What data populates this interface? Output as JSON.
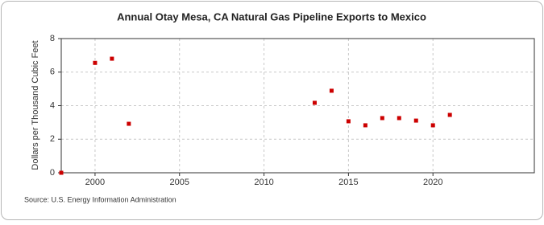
{
  "chart_data": {
    "type": "scatter",
    "title": "Annual Otay Mesa, CA Natural Gas Pipeline Exports to Mexico",
    "y_label": "Dollars per Thousand Cubic Feet",
    "source": "Source: U.S. Energy Information Administration",
    "x": [
      1998,
      2000,
      2001,
      2002,
      2013,
      2014,
      2015,
      2016,
      2017,
      2018,
      2019,
      2020,
      2021
    ],
    "values": [
      0,
      6.55,
      6.8,
      2.92,
      4.17,
      4.89,
      3.07,
      2.83,
      3.26,
      3.26,
      3.11,
      2.83,
      3.45
    ],
    "color": "#cc0000",
    "xlim": [
      1998,
      2026
    ],
    "xticks": [
      2000,
      2005,
      2010,
      2015,
      2020
    ],
    "ylim": [
      0,
      8
    ],
    "yticks": [
      0,
      2,
      4,
      6,
      8
    ],
    "grid": true
  }
}
